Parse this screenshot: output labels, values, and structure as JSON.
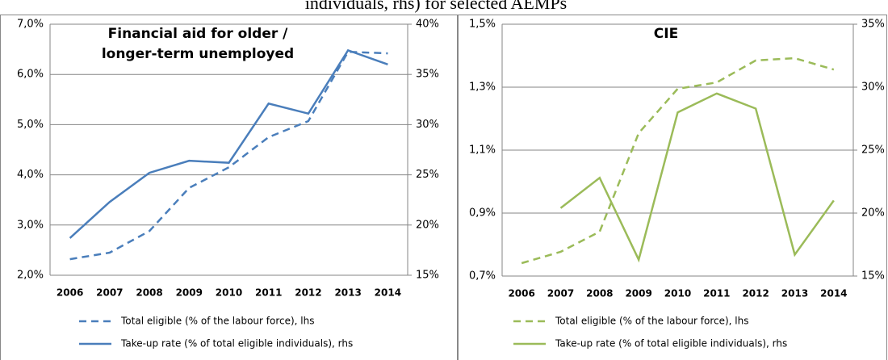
{
  "header": {
    "title": "individuals, rhs) for selected AEMPs"
  },
  "chart_data": [
    {
      "type": "line",
      "title": "Financial aid for older / longer-term unemployed",
      "categories": [
        "2006",
        "2007",
        "2008",
        "2009",
        "2010",
        "2011",
        "2012",
        "2013",
        "2014"
      ],
      "series": [
        {
          "name": "Total eligible (% of the labour force), lhs",
          "color": "#4a7ebb",
          "dashed": true,
          "values": [
            2.32,
            2.45,
            2.88,
            3.74,
            4.15,
            4.75,
            5.07,
            6.45,
            6.42
          ]
        },
        {
          "name": "Take-up rate (% of total eligible individuals), rhs",
          "color": "#4a7ebb",
          "dashed": false,
          "axis": "y2",
          "values": [
            18.7,
            22.3,
            25.2,
            26.4,
            26.2,
            32.1,
            31.1,
            37.4,
            36.0
          ]
        }
      ],
      "ylim": [
        2.0,
        7.0
      ],
      "yticks": [
        {
          "value": 2.0,
          "label": "2,0%"
        },
        {
          "value": 3.0,
          "label": "3,0%"
        },
        {
          "value": 4.0,
          "label": "4,0%"
        },
        {
          "value": 5.0,
          "label": "5,0%"
        },
        {
          "value": 6.0,
          "label": "6,0%"
        },
        {
          "value": 7.0,
          "label": "7,0%"
        }
      ],
      "y2lim": [
        15,
        40
      ],
      "y2ticks": [
        {
          "value": 15,
          "label": "15%"
        },
        {
          "value": 20,
          "label": "20%"
        },
        {
          "value": 25,
          "label": "25%"
        },
        {
          "value": 30,
          "label": "30%"
        },
        {
          "value": 35,
          "label": "35%"
        },
        {
          "value": 40,
          "label": "40%"
        }
      ],
      "grid": true
    },
    {
      "type": "line",
      "title": "CIE",
      "categories": [
        "2006",
        "2007",
        "2008",
        "2009",
        "2010",
        "2011",
        "2012",
        "2013",
        "2014"
      ],
      "series": [
        {
          "name": "Total eligible (% of the labour force), lhs",
          "color": "#9bbb59",
          "dashed": true,
          "values": [
            0.741,
            0.777,
            0.841,
            1.154,
            1.295,
            1.315,
            1.385,
            1.392,
            1.356
          ]
        },
        {
          "name": "Take-up rate (% of total eligible individuals), rhs",
          "color": "#9bbb59",
          "dashed": false,
          "axis": "y2",
          "values": [
            null,
            20.4,
            22.8,
            16.3,
            28.0,
            29.5,
            28.3,
            16.7,
            21.0
          ]
        }
      ],
      "ylim": [
        0.7,
        1.5
      ],
      "yticks": [
        {
          "value": 0.7,
          "label": "0,7%"
        },
        {
          "value": 0.9,
          "label": "0,9%"
        },
        {
          "value": 1.1,
          "label": "1,1%"
        },
        {
          "value": 1.3,
          "label": "1,3%"
        },
        {
          "value": 1.5,
          "label": "1,5%"
        }
      ],
      "y2lim": [
        15,
        35
      ],
      "y2ticks": [
        {
          "value": 15,
          "label": "15%"
        },
        {
          "value": 20,
          "label": "20%"
        },
        {
          "value": 25,
          "label": "25%"
        },
        {
          "value": 30,
          "label": "30%"
        },
        {
          "value": 35,
          "label": "35%"
        }
      ],
      "grid": true
    }
  ]
}
